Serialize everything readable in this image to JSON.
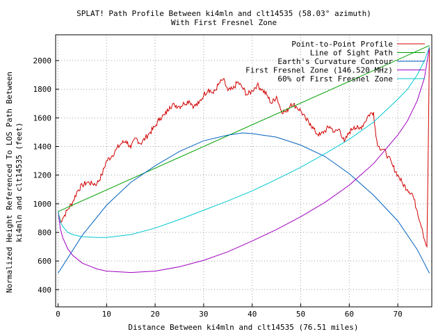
{
  "chart_data": {
    "type": "line",
    "title": "SPLAT! Path Profile Between ki4mln and clt14535 (58.03° azimuth)",
    "subtitle": "With First Fresnel Zone",
    "xlabel": "Distance Between ki4mln and clt14535 (76.51 miles)",
    "ylabel_line1": "Normalized Height Referenced To LOS Path Between",
    "ylabel_line2": "ki4mln and clt14535 (feet)",
    "xlim": [
      -0.5,
      77
    ],
    "ylim": [
      280,
      2180
    ],
    "x_ticks": [
      0,
      10,
      20,
      30,
      40,
      50,
      60,
      70
    ],
    "y_ticks": [
      400,
      600,
      800,
      1000,
      1200,
      1400,
      1600,
      1800,
      2000
    ],
    "grid": true,
    "legend_position": "top-right",
    "series": [
      {
        "name": "Point-to-Point Profile",
        "color": "#d00000",
        "points": [
          [
            0,
            945
          ],
          [
            0.5,
            880
          ],
          [
            1,
            900
          ],
          [
            2,
            960
          ],
          [
            3,
            1010
          ],
          [
            4,
            1090
          ],
          [
            5,
            1130
          ],
          [
            6,
            1150
          ],
          [
            7,
            1140
          ],
          [
            8,
            1140
          ],
          [
            9,
            1200
          ],
          [
            10,
            1300
          ],
          [
            11,
            1330
          ],
          [
            12,
            1380
          ],
          [
            13,
            1420
          ],
          [
            14,
            1440
          ],
          [
            15,
            1390
          ],
          [
            16,
            1460
          ],
          [
            17,
            1420
          ],
          [
            18,
            1460
          ],
          [
            19,
            1500
          ],
          [
            20,
            1540
          ],
          [
            21,
            1600
          ],
          [
            22,
            1620
          ],
          [
            23,
            1680
          ],
          [
            24,
            1690
          ],
          [
            25,
            1680
          ],
          [
            26,
            1700
          ],
          [
            27,
            1720
          ],
          [
            28,
            1680
          ],
          [
            29,
            1700
          ],
          [
            30,
            1760
          ],
          [
            31,
            1800
          ],
          [
            32,
            1770
          ],
          [
            33,
            1830
          ],
          [
            34,
            1870
          ],
          [
            35,
            1790
          ],
          [
            36,
            1800
          ],
          [
            37,
            1850
          ],
          [
            38,
            1810
          ],
          [
            39,
            1760
          ],
          [
            40,
            1790
          ],
          [
            41,
            1830
          ],
          [
            42,
            1800
          ],
          [
            43,
            1760
          ],
          [
            44,
            1700
          ],
          [
            45,
            1750
          ],
          [
            46,
            1650
          ],
          [
            47,
            1640
          ],
          [
            48,
            1700
          ],
          [
            49,
            1680
          ],
          [
            50,
            1650
          ],
          [
            51,
            1590
          ],
          [
            52,
            1560
          ],
          [
            53,
            1500
          ],
          [
            54,
            1480
          ],
          [
            55,
            1510
          ],
          [
            56,
            1540
          ],
          [
            57,
            1500
          ],
          [
            58,
            1520
          ],
          [
            59,
            1430
          ],
          [
            60,
            1500
          ],
          [
            61,
            1540
          ],
          [
            62,
            1520
          ],
          [
            63,
            1560
          ],
          [
            64,
            1620
          ],
          [
            65,
            1640
          ],
          [
            65.5,
            1470
          ],
          [
            66,
            1400
          ],
          [
            67,
            1380
          ],
          [
            68,
            1330
          ],
          [
            69,
            1260
          ],
          [
            70,
            1200
          ],
          [
            71,
            1140
          ],
          [
            72,
            1100
          ],
          [
            73,
            1070
          ],
          [
            74,
            950
          ],
          [
            75,
            830
          ],
          [
            75.5,
            750
          ],
          [
            76,
            700
          ],
          [
            76.3,
            1450
          ],
          [
            76.51,
            2095
          ]
        ]
      },
      {
        "name": "Line of Sight Path",
        "color": "#00a000",
        "points": [
          [
            0,
            945
          ],
          [
            76.51,
            2105
          ]
        ]
      },
      {
        "name": "Earth's Curvature Contour",
        "color": "#0060c0",
        "points": [
          [
            0,
            515
          ],
          [
            5,
            780
          ],
          [
            10,
            990
          ],
          [
            15,
            1150
          ],
          [
            20,
            1265
          ],
          [
            25,
            1365
          ],
          [
            30,
            1440
          ],
          [
            35,
            1480
          ],
          [
            38,
            1495
          ],
          [
            40,
            1490
          ],
          [
            45,
            1465
          ],
          [
            50,
            1410
          ],
          [
            55,
            1330
          ],
          [
            60,
            1210
          ],
          [
            65,
            1060
          ],
          [
            70,
            880
          ],
          [
            74,
            680
          ],
          [
            76.51,
            515
          ]
        ]
      },
      {
        "name": "First Fresnel Zone (146.520 MHz)",
        "color": "#a000c0",
        "points": [
          [
            0,
            945
          ],
          [
            0.5,
            820
          ],
          [
            1,
            760
          ],
          [
            2,
            685
          ],
          [
            3,
            640
          ],
          [
            5,
            585
          ],
          [
            8,
            545
          ],
          [
            10,
            530
          ],
          [
            15,
            520
          ],
          [
            20,
            530
          ],
          [
            25,
            560
          ],
          [
            30,
            605
          ],
          [
            35,
            665
          ],
          [
            40,
            740
          ],
          [
            45,
            820
          ],
          [
            50,
            910
          ],
          [
            55,
            1010
          ],
          [
            60,
            1130
          ],
          [
            65,
            1280
          ],
          [
            70,
            1480
          ],
          [
            72,
            1580
          ],
          [
            74,
            1720
          ],
          [
            75.5,
            1880
          ],
          [
            76.51,
            2095
          ]
        ]
      },
      {
        "name": "60% of First Fresnel Zone",
        "color": "#00c8d0",
        "points": [
          [
            0,
            945
          ],
          [
            0.5,
            870
          ],
          [
            1,
            840
          ],
          [
            2,
            800
          ],
          [
            3,
            785
          ],
          [
            5,
            770
          ],
          [
            8,
            765
          ],
          [
            10,
            765
          ],
          [
            15,
            785
          ],
          [
            20,
            830
          ],
          [
            25,
            890
          ],
          [
            30,
            955
          ],
          [
            35,
            1020
          ],
          [
            40,
            1090
          ],
          [
            45,
            1170
          ],
          [
            50,
            1255
          ],
          [
            55,
            1350
          ],
          [
            60,
            1450
          ],
          [
            65,
            1570
          ],
          [
            70,
            1730
          ],
          [
            72,
            1800
          ],
          [
            74,
            1900
          ],
          [
            75.5,
            2000
          ],
          [
            76.51,
            2095
          ]
        ]
      }
    ]
  }
}
